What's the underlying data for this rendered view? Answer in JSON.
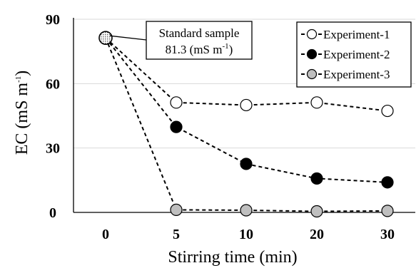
{
  "chart_data": {
    "type": "line",
    "xlabel": "Stirring time (min)",
    "ylabel": {
      "main": "EC (mS m",
      "sup": "-1",
      "close": ")"
    },
    "categories": [
      "0",
      "5",
      "10",
      "20",
      "30"
    ],
    "yticks": [
      "0",
      "30",
      "60",
      "90"
    ],
    "ylim": [
      0,
      90
    ],
    "grid": "horizontal",
    "legend_position": "top-right",
    "standard": {
      "x": "0",
      "y": 81.3,
      "label_line1": "Standard sample",
      "label_value": "81.3",
      "label_unit_pre": " (mS m",
      "label_unit_sup": "-1",
      "label_unit_post": ")",
      "color": "#c8c8c8"
    },
    "series": [
      {
        "name": "Experiment-1",
        "values": [
          81.3,
          51.2,
          50.0,
          51.2,
          47.3
        ],
        "color": "#ffffff"
      },
      {
        "name": "Experiment-2",
        "values": [
          81.3,
          39.8,
          22.6,
          15.8,
          14.0
        ],
        "color": "#000000"
      },
      {
        "name": "Experiment-3",
        "values": [
          81.3,
          1.2,
          1.0,
          0.5,
          0.7
        ],
        "color": "#bfbfbf"
      }
    ]
  }
}
